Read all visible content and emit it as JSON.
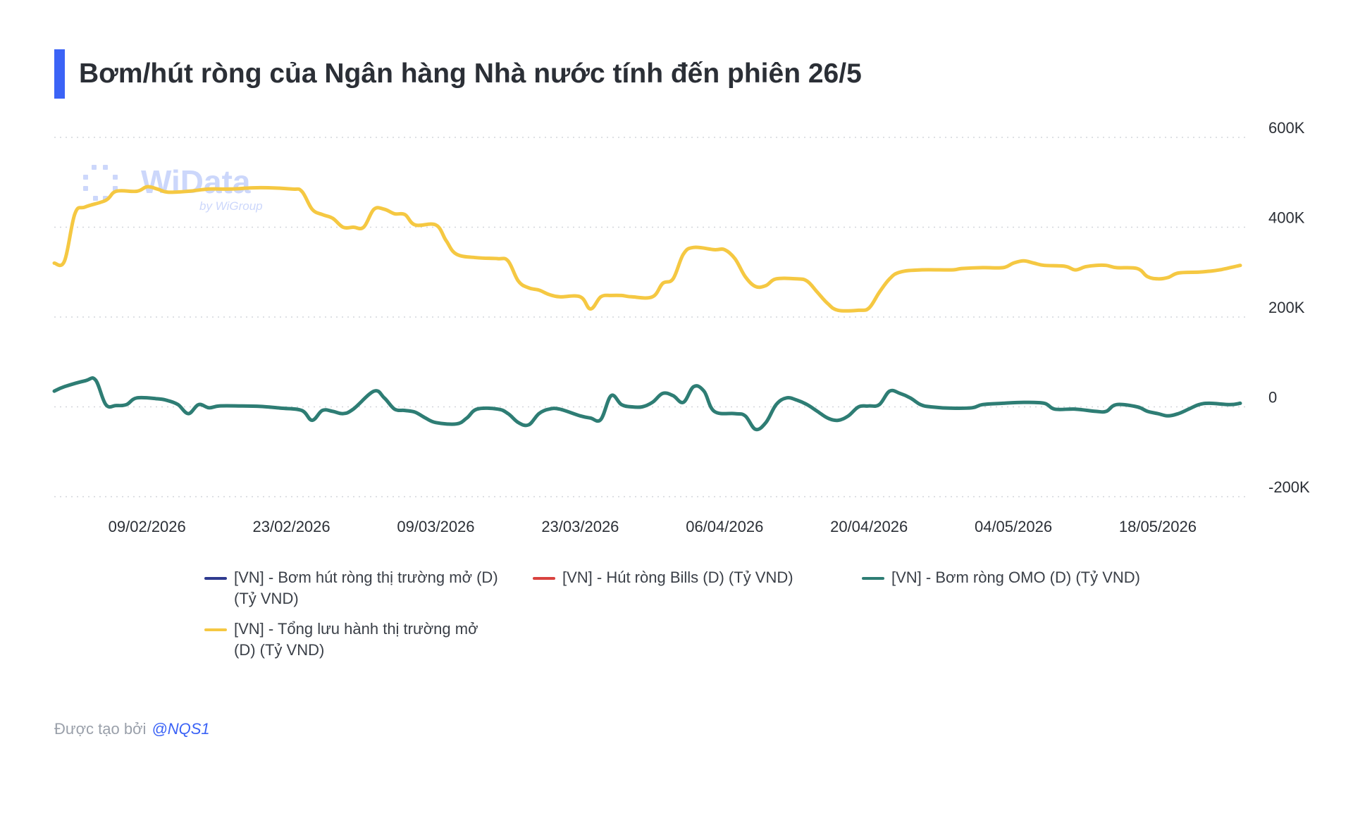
{
  "title": "Bơm/hút ròng của Ngân hàng Nhà nước tính đến phiên 26/5",
  "watermark": {
    "brand": "WiData",
    "sub": "by WiGroup"
  },
  "footer": {
    "prefix": "Được tạo bởi",
    "handle": "@NQS1"
  },
  "colors": {
    "accent": "#3b63f6",
    "yellow": "#f5c842",
    "teal": "#2e7d74",
    "navy": "#2f3a8f",
    "red": "#d9423f",
    "grid": "#d3d6db"
  },
  "chart_data": {
    "type": "line",
    "title": "Bơm/hút ròng của Ngân hàng Nhà nước tính đến phiên 26/5",
    "xlabel": "",
    "ylabel": "",
    "x_range": [
      "2026-01-31",
      "2026-05-26"
    ],
    "ylim": [
      -200000,
      600000
    ],
    "y_ticks": [
      600000,
      400000,
      200000,
      0,
      -200000
    ],
    "y_tick_labels": [
      "600K",
      "400K",
      "200K",
      "0",
      "-200K"
    ],
    "x_tick_labels": [
      "09/02/2026",
      "23/02/2026",
      "09/03/2026",
      "23/03/2026",
      "06/04/2026",
      "20/04/2026",
      "04/05/2026",
      "18/05/2026"
    ],
    "grid": true,
    "legend_position": "bottom",
    "series": [
      {
        "name": "[VN] - Bơm hút ròng thị trường mở (D) (Tỷ VND)",
        "color": "#2f3a8f",
        "points": []
      },
      {
        "name": "[VN] - Hút ròng Bills (D) (Tỷ VND)",
        "color": "#d9423f",
        "points": []
      },
      {
        "name": "[VN] - Bơm ròng OMO (D) (Tỷ VND)",
        "color": "#2e7d74",
        "points": [
          [
            "2026-01-31",
            35000
          ],
          [
            "2026-02-01",
            45000
          ],
          [
            "2026-02-03",
            58000
          ],
          [
            "2026-02-04",
            60000
          ],
          [
            "2026-02-05",
            5000
          ],
          [
            "2026-02-06",
            3000
          ],
          [
            "2026-02-07",
            5000
          ],
          [
            "2026-02-08",
            20000
          ],
          [
            "2026-02-10",
            18000
          ],
          [
            "2026-02-11",
            14000
          ],
          [
            "2026-02-12",
            5000
          ],
          [
            "2026-02-13",
            -15000
          ],
          [
            "2026-02-14",
            5000
          ],
          [
            "2026-02-15",
            -2000
          ],
          [
            "2026-02-16",
            2000
          ],
          [
            "2026-02-18",
            2000
          ],
          [
            "2026-02-20",
            1000
          ],
          [
            "2026-02-22",
            -3000
          ],
          [
            "2026-02-24",
            -8000
          ],
          [
            "2026-02-25",
            -30000
          ],
          [
            "2026-02-26",
            -8000
          ],
          [
            "2026-02-27",
            -10000
          ],
          [
            "2026-02-28",
            -15000
          ],
          [
            "2026-03-01",
            -5000
          ],
          [
            "2026-03-03",
            35000
          ],
          [
            "2026-03-04",
            20000
          ],
          [
            "2026-03-05",
            -5000
          ],
          [
            "2026-03-06",
            -8000
          ],
          [
            "2026-03-07",
            -12000
          ],
          [
            "2026-03-08",
            -25000
          ],
          [
            "2026-03-09",
            -35000
          ],
          [
            "2026-03-11",
            -38000
          ],
          [
            "2026-03-12",
            -25000
          ],
          [
            "2026-03-13",
            -5000
          ],
          [
            "2026-03-15",
            -5000
          ],
          [
            "2026-03-16",
            -15000
          ],
          [
            "2026-03-17",
            -35000
          ],
          [
            "2026-03-18",
            -40000
          ],
          [
            "2026-03-19",
            -15000
          ],
          [
            "2026-03-20",
            -5000
          ],
          [
            "2026-03-21",
            -5000
          ],
          [
            "2026-03-23",
            -20000
          ],
          [
            "2026-03-24",
            -25000
          ],
          [
            "2026-03-25",
            -28000
          ],
          [
            "2026-03-26",
            25000
          ],
          [
            "2026-03-27",
            5000
          ],
          [
            "2026-03-28",
            0
          ],
          [
            "2026-03-29",
            0
          ],
          [
            "2026-03-30",
            10000
          ],
          [
            "2026-03-31",
            30000
          ],
          [
            "2026-04-01",
            25000
          ],
          [
            "2026-04-02",
            10000
          ],
          [
            "2026-04-03",
            45000
          ],
          [
            "2026-04-04",
            35000
          ],
          [
            "2026-04-05",
            -10000
          ],
          [
            "2026-04-07",
            -15000
          ],
          [
            "2026-04-08",
            -20000
          ],
          [
            "2026-04-09",
            -50000
          ],
          [
            "2026-04-10",
            -35000
          ],
          [
            "2026-04-11",
            5000
          ],
          [
            "2026-04-12",
            20000
          ],
          [
            "2026-04-13",
            15000
          ],
          [
            "2026-04-14",
            5000
          ],
          [
            "2026-04-15",
            -10000
          ],
          [
            "2026-04-16",
            -25000
          ],
          [
            "2026-04-17",
            -30000
          ],
          [
            "2026-04-18",
            -20000
          ],
          [
            "2026-04-19",
            0
          ],
          [
            "2026-04-20",
            2000
          ],
          [
            "2026-04-21",
            5000
          ],
          [
            "2026-04-22",
            35000
          ],
          [
            "2026-04-23",
            30000
          ],
          [
            "2026-04-24",
            20000
          ],
          [
            "2026-04-25",
            5000
          ],
          [
            "2026-04-26",
            0
          ],
          [
            "2026-04-28",
            -3000
          ],
          [
            "2026-04-30",
            -2000
          ],
          [
            "2026-05-01",
            5000
          ],
          [
            "2026-05-03",
            8000
          ],
          [
            "2026-05-05",
            10000
          ],
          [
            "2026-05-07",
            8000
          ],
          [
            "2026-05-08",
            -5000
          ],
          [
            "2026-05-10",
            -5000
          ],
          [
            "2026-05-12",
            -10000
          ],
          [
            "2026-05-13",
            -10000
          ],
          [
            "2026-05-14",
            5000
          ],
          [
            "2026-05-16",
            0
          ],
          [
            "2026-05-17",
            -10000
          ],
          [
            "2026-05-18",
            -15000
          ],
          [
            "2026-05-19",
            -20000
          ],
          [
            "2026-05-20",
            -15000
          ],
          [
            "2026-05-21",
            -5000
          ],
          [
            "2026-05-22",
            5000
          ],
          [
            "2026-05-23",
            8000
          ],
          [
            "2026-05-25",
            5000
          ],
          [
            "2026-05-26",
            8000
          ]
        ]
      },
      {
        "name": "[VN] - Tổng lưu hành thị trường mở (D) (Tỷ VND)",
        "color": "#f5c842",
        "points": [
          [
            "2026-01-31",
            320000
          ],
          [
            "2026-02-01",
            325000
          ],
          [
            "2026-02-02",
            430000
          ],
          [
            "2026-02-03",
            445000
          ],
          [
            "2026-02-05",
            460000
          ],
          [
            "2026-02-06",
            480000
          ],
          [
            "2026-02-08",
            480000
          ],
          [
            "2026-02-09",
            490000
          ],
          [
            "2026-02-10",
            485000
          ],
          [
            "2026-02-11",
            478000
          ],
          [
            "2026-02-13",
            480000
          ],
          [
            "2026-02-15",
            485000
          ],
          [
            "2026-02-17",
            485000
          ],
          [
            "2026-02-20",
            488000
          ],
          [
            "2026-02-23",
            485000
          ],
          [
            "2026-02-24",
            480000
          ],
          [
            "2026-02-25",
            440000
          ],
          [
            "2026-02-26",
            428000
          ],
          [
            "2026-02-27",
            420000
          ],
          [
            "2026-02-28",
            400000
          ],
          [
            "2026-03-01",
            400000
          ],
          [
            "2026-03-02",
            400000
          ],
          [
            "2026-03-03",
            440000
          ],
          [
            "2026-03-04",
            440000
          ],
          [
            "2026-03-05",
            430000
          ],
          [
            "2026-03-06",
            428000
          ],
          [
            "2026-03-07",
            405000
          ],
          [
            "2026-03-09",
            405000
          ],
          [
            "2026-03-10",
            370000
          ],
          [
            "2026-03-11",
            340000
          ],
          [
            "2026-03-13",
            332000
          ],
          [
            "2026-03-15",
            330000
          ],
          [
            "2026-03-16",
            325000
          ],
          [
            "2026-03-17",
            280000
          ],
          [
            "2026-03-18",
            265000
          ],
          [
            "2026-03-19",
            260000
          ],
          [
            "2026-03-20",
            250000
          ],
          [
            "2026-03-21",
            245000
          ],
          [
            "2026-03-23",
            245000
          ],
          [
            "2026-03-24",
            218000
          ],
          [
            "2026-03-25",
            245000
          ],
          [
            "2026-03-26",
            248000
          ],
          [
            "2026-03-27",
            248000
          ],
          [
            "2026-03-28",
            245000
          ],
          [
            "2026-03-30",
            245000
          ],
          [
            "2026-03-31",
            275000
          ],
          [
            "2026-04-01",
            285000
          ],
          [
            "2026-04-02",
            340000
          ],
          [
            "2026-04-03",
            355000
          ],
          [
            "2026-04-05",
            350000
          ],
          [
            "2026-04-06",
            350000
          ],
          [
            "2026-04-07",
            330000
          ],
          [
            "2026-04-08",
            290000
          ],
          [
            "2026-04-09",
            268000
          ],
          [
            "2026-04-10",
            270000
          ],
          [
            "2026-04-11",
            285000
          ],
          [
            "2026-04-13",
            285000
          ],
          [
            "2026-04-14",
            280000
          ],
          [
            "2026-04-15",
            255000
          ],
          [
            "2026-04-16",
            230000
          ],
          [
            "2026-04-17",
            215000
          ],
          [
            "2026-04-19",
            215000
          ],
          [
            "2026-04-20",
            220000
          ],
          [
            "2026-04-21",
            255000
          ],
          [
            "2026-04-22",
            285000
          ],
          [
            "2026-04-23",
            300000
          ],
          [
            "2026-04-25",
            305000
          ],
          [
            "2026-04-28",
            305000
          ],
          [
            "2026-04-29",
            308000
          ],
          [
            "2026-05-01",
            310000
          ],
          [
            "2026-05-03",
            310000
          ],
          [
            "2026-05-04",
            320000
          ],
          [
            "2026-05-05",
            325000
          ],
          [
            "2026-05-06",
            320000
          ],
          [
            "2026-05-07",
            315000
          ],
          [
            "2026-05-09",
            313000
          ],
          [
            "2026-05-10",
            305000
          ],
          [
            "2026-05-11",
            312000
          ],
          [
            "2026-05-12",
            315000
          ],
          [
            "2026-05-13",
            315000
          ],
          [
            "2026-05-14",
            310000
          ],
          [
            "2026-05-16",
            308000
          ],
          [
            "2026-05-17",
            290000
          ],
          [
            "2026-05-18",
            285000
          ],
          [
            "2026-05-19",
            288000
          ],
          [
            "2026-05-20",
            298000
          ],
          [
            "2026-05-22",
            300000
          ],
          [
            "2026-05-23",
            302000
          ],
          [
            "2026-05-24",
            305000
          ],
          [
            "2026-05-26",
            315000
          ]
        ]
      }
    ]
  }
}
